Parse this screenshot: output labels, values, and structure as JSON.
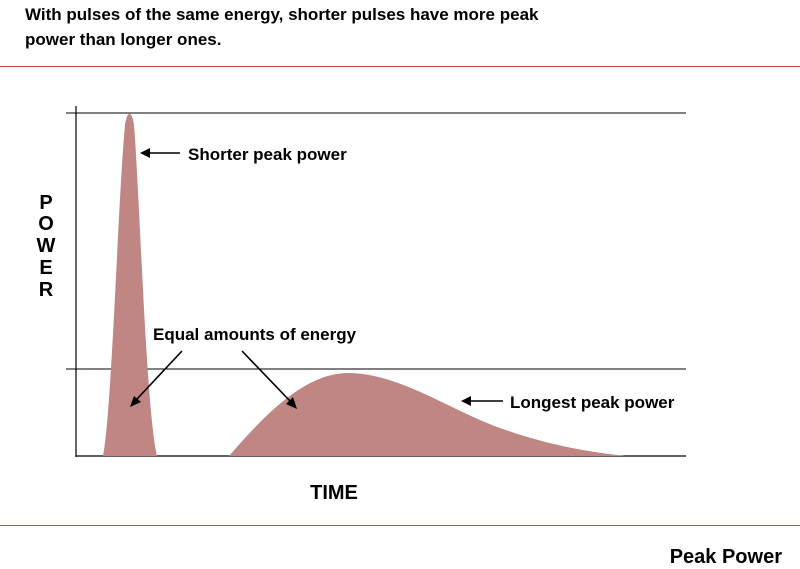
{
  "header": {
    "line1": "With pulses of the same energy, shorter pulses have more peak",
    "line2": "power than longer ones."
  },
  "footer": {
    "title": "Peak Power"
  },
  "diagram": {
    "y_axis_letters": [
      "P",
      "O",
      "W",
      "E",
      "R"
    ],
    "x_axis_label": "TIME",
    "labels": {
      "short_pulse": "Shorter peak power",
      "equal_energy": "Equal amounts of energy",
      "long_pulse": "Longest peak power"
    },
    "colors": {
      "pulse_fill": "#bf8683",
      "rule": "#d94545"
    }
  }
}
